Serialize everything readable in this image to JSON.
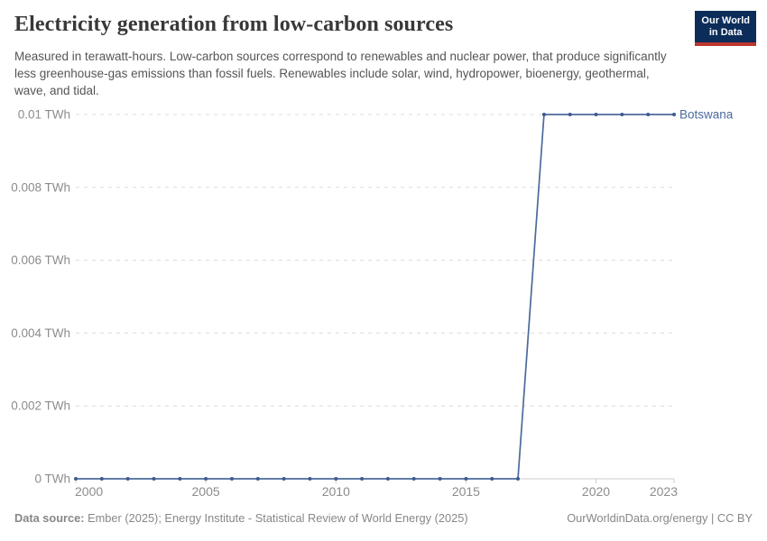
{
  "header": {
    "title": "Electricity generation from low-carbon sources",
    "subtitle": "Measured in terawatt-hours. Low-carbon sources correspond to renewables and nuclear power, that produce significantly less greenhouse-gas emissions than fossil fuels. Renewables include solar, wind, hydropower, bioenergy, geothermal, wave, and tidal.",
    "logo": {
      "line1": "Our World",
      "line2": "in Data",
      "bg_color": "#0c2d5a",
      "accent_color": "#bb362e"
    }
  },
  "chart_data": {
    "type": "line",
    "title": "Electricity generation from low-carbon sources",
    "xlabel": "",
    "ylabel": "TWh",
    "grid": "horizontal-dashed",
    "legend_position": "end-of-line-label",
    "xlim": [
      2000,
      2023
    ],
    "ylim": [
      0,
      0.01
    ],
    "x_ticks": [
      2000,
      2005,
      2010,
      2015,
      2020,
      2023
    ],
    "y_ticks": [
      {
        "value": 0,
        "label": "0 TWh"
      },
      {
        "value": 0.002,
        "label": "0.002 TWh"
      },
      {
        "value": 0.004,
        "label": "0.004 TWh"
      },
      {
        "value": 0.006,
        "label": "0.006 TWh"
      },
      {
        "value": 0.008,
        "label": "0.008 TWh"
      },
      {
        "value": 0.01,
        "label": "0.01 TWh"
      }
    ],
    "x": [
      2000,
      2001,
      2002,
      2003,
      2004,
      2005,
      2006,
      2007,
      2008,
      2009,
      2010,
      2011,
      2012,
      2013,
      2014,
      2015,
      2016,
      2017,
      2018,
      2019,
      2020,
      2021,
      2022,
      2023
    ],
    "series": [
      {
        "name": "Botswana",
        "color": "#4c6a9c",
        "marker_color": "#3d5a8f",
        "values": [
          0,
          0,
          0,
          0,
          0,
          0,
          0,
          0,
          0,
          0,
          0,
          0,
          0,
          0,
          0,
          0,
          0,
          0,
          0.01,
          0.01,
          0.01,
          0.01,
          0.01,
          0.01
        ]
      }
    ],
    "colors": {
      "gridline": "#dcdcdc",
      "axis_line": "#cccccc",
      "tick_label": "#8c8c8c"
    }
  },
  "footer": {
    "source_label": "Data source:",
    "source_text": " Ember (2025); Energy Institute - Statistical Review of World Energy (2025)",
    "right_text": "OurWorldinData.org/energy | CC BY"
  }
}
